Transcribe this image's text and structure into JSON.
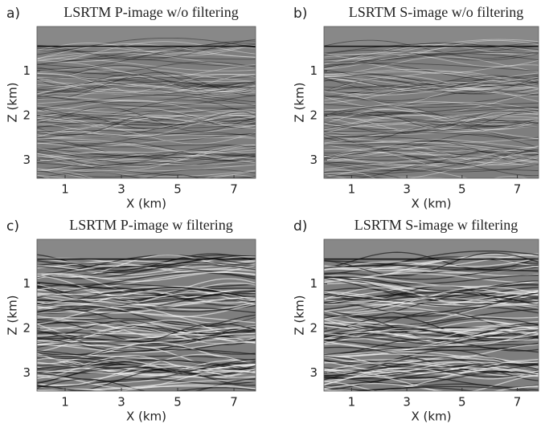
{
  "chart_data": [
    {
      "type": "image",
      "label": "a)",
      "title": "LSRTM P-image w/o filtering",
      "xlabel": "X (km)",
      "ylabel": "Z (km)",
      "xlim": [
        0,
        7.77
      ],
      "ylim": [
        0,
        3.41
      ],
      "y_inverted": true,
      "xticks": [
        1,
        3,
        5,
        7
      ],
      "yticks": [
        1,
        2,
        3
      ]
    },
    {
      "type": "image",
      "label": "b)",
      "title": "LSRTM S-image w/o filtering",
      "xlabel": "X (km)",
      "ylabel": "Z (km)",
      "xlim": [
        0,
        7.77
      ],
      "ylim": [
        0,
        3.41
      ],
      "y_inverted": true,
      "xticks": [
        1,
        3,
        5,
        7
      ],
      "yticks": [
        1,
        2,
        3
      ]
    },
    {
      "type": "image",
      "label": "c)",
      "title": "LSRTM P-image w filtering",
      "xlabel": "X (km)",
      "ylabel": "Z (km)",
      "xlim": [
        0,
        7.77
      ],
      "ylim": [
        0,
        3.41
      ],
      "y_inverted": true,
      "xticks": [
        1,
        3,
        5,
        7
      ],
      "yticks": [
        1,
        2,
        3
      ]
    },
    {
      "type": "image",
      "label": "d)",
      "title": "LSRTM S-image w filtering",
      "xlabel": "X (km)",
      "ylabel": "Z (km)",
      "xlim": [
        0,
        7.77
      ],
      "ylim": [
        0,
        3.41
      ],
      "y_inverted": true,
      "xticks": [
        1,
        3,
        5,
        7
      ],
      "yticks": [
        1,
        2,
        3
      ]
    }
  ]
}
